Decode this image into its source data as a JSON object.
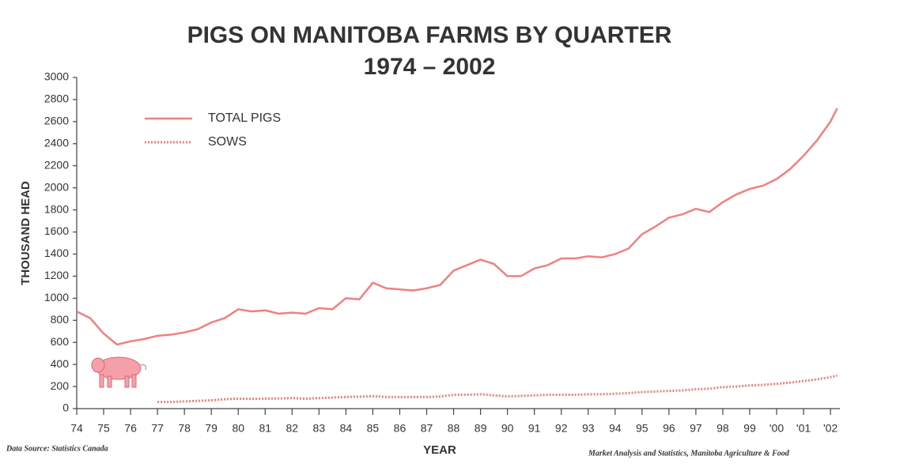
{
  "chart_data": {
    "type": "line",
    "title": "PIGS ON MANITOBA FARMS BY QUARTER",
    "subtitle": "1974 – 2002",
    "y_label": "THOUSAND HEAD",
    "x_label": "YEAR",
    "source": "Data Source: Statistics Canada",
    "credit": "Market Analysis and Statistics, Manitoba Agriculture & Food",
    "x": [
      1974,
      1974.5,
      1975,
      1975.5,
      1976,
      1976.5,
      1977,
      1977.5,
      1978,
      1978.5,
      1979,
      1979.5,
      1980,
      1980.5,
      1981,
      1981.5,
      1982,
      1982.5,
      1983,
      1983.5,
      1984,
      1984.5,
      1985,
      1985.5,
      1986,
      1986.5,
      1987,
      1987.5,
      1988,
      1988.5,
      1989,
      1989.5,
      1990,
      1990.5,
      1991,
      1991.5,
      1992,
      1992.5,
      1993,
      1993.5,
      1994,
      1994.5,
      1995,
      1995.5,
      1996,
      1996.5,
      1997,
      1997.5,
      1998,
      1998.5,
      1999,
      1999.5,
      2000,
      2000.5,
      2001,
      2001.5,
      2002,
      2002.25
    ],
    "series": [
      {
        "name": "TOTAL PIGS",
        "color": "#f08080",
        "style": "solid",
        "values": [
          880,
          820,
          680,
          580,
          610,
          630,
          660,
          670,
          690,
          720,
          780,
          820,
          900,
          880,
          890,
          860,
          870,
          860,
          910,
          900,
          1000,
          990,
          1140,
          1090,
          1080,
          1070,
          1090,
          1120,
          1250,
          1300,
          1350,
          1310,
          1200,
          1200,
          1270,
          1300,
          1360,
          1360,
          1380,
          1370,
          1400,
          1450,
          1580,
          1650,
          1730,
          1760,
          1810,
          1780,
          1870,
          1940,
          1990,
          2020,
          2080,
          2170,
          2290,
          2430,
          2600,
          2720
        ]
      },
      {
        "name": "SOWS",
        "color": "#f08080",
        "style": "dotted",
        "values": [
          null,
          null,
          null,
          null,
          null,
          null,
          60,
          60,
          65,
          70,
          75,
          85,
          90,
          88,
          90,
          92,
          95,
          90,
          95,
          100,
          105,
          108,
          112,
          105,
          105,
          105,
          105,
          110,
          125,
          125,
          130,
          120,
          110,
          115,
          120,
          125,
          125,
          125,
          130,
          130,
          135,
          140,
          150,
          155,
          160,
          165,
          175,
          180,
          195,
          200,
          210,
          215,
          225,
          235,
          250,
          265,
          285,
          300
        ]
      }
    ],
    "xlim": [
      1974,
      2002.35
    ],
    "xticks": [
      {
        "value": 1974,
        "label": "74"
      },
      {
        "value": 1975,
        "label": "75"
      },
      {
        "value": 1976,
        "label": "76"
      },
      {
        "value": 1977,
        "label": "77"
      },
      {
        "value": 1978,
        "label": "78"
      },
      {
        "value": 1979,
        "label": "79"
      },
      {
        "value": 1980,
        "label": "80"
      },
      {
        "value": 1981,
        "label": "81"
      },
      {
        "value": 1982,
        "label": "82"
      },
      {
        "value": 1983,
        "label": "83"
      },
      {
        "value": 1984,
        "label": "84"
      },
      {
        "value": 1985,
        "label": "85"
      },
      {
        "value": 1986,
        "label": "86"
      },
      {
        "value": 1987,
        "label": "87"
      },
      {
        "value": 1988,
        "label": "88"
      },
      {
        "value": 1989,
        "label": "89"
      },
      {
        "value": 1990,
        "label": "90"
      },
      {
        "value": 1991,
        "label": "91"
      },
      {
        "value": 1992,
        "label": "92"
      },
      {
        "value": 1993,
        "label": "93"
      },
      {
        "value": 1994,
        "label": "94"
      },
      {
        "value": 1995,
        "label": "95"
      },
      {
        "value": 1996,
        "label": "96"
      },
      {
        "value": 1997,
        "label": "97"
      },
      {
        "value": 1998,
        "label": "98"
      },
      {
        "value": 1999,
        "label": "99"
      },
      {
        "value": 2000,
        "label": "'00"
      },
      {
        "value": 2001,
        "label": "'01"
      },
      {
        "value": 2002,
        "label": "'02"
      }
    ],
    "ylim": [
      0,
      3000
    ],
    "yticks": [
      0,
      200,
      400,
      600,
      800,
      1000,
      1200,
      1400,
      1600,
      1800,
      2000,
      2200,
      2400,
      2600,
      2800,
      3000
    ],
    "grid": false,
    "legend": "upper left"
  }
}
